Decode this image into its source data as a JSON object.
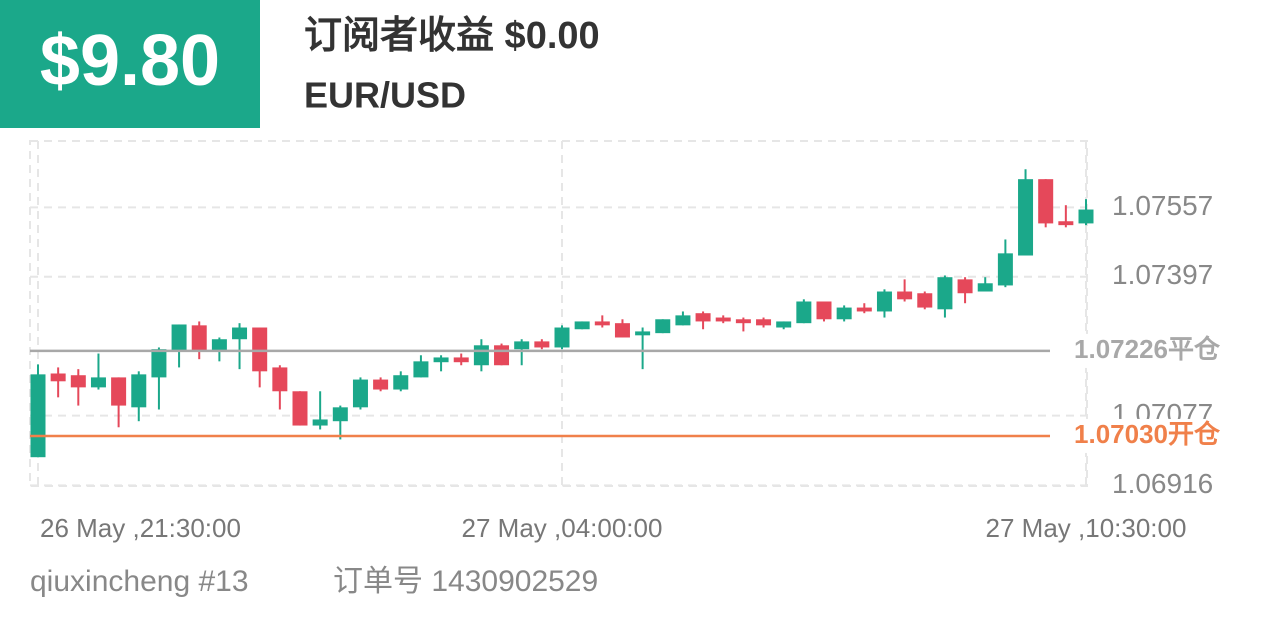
{
  "header": {
    "profit": "$9.80",
    "title": "订阅者收益 $0.00",
    "symbol": "EUR/USD"
  },
  "footer": {
    "user": "qiuxincheng #13",
    "order": "订单号 1430902529"
  },
  "chart_data": {
    "type": "candlestick",
    "categories": [
      "26 May ,21:30:00",
      null,
      null,
      null,
      null,
      null,
      null,
      null,
      null,
      null,
      null,
      null,
      null,
      null,
      null,
      null,
      null,
      null,
      null,
      null,
      null,
      null,
      null,
      null,
      null,
      null,
      "27 May ,04:00:00",
      null,
      null,
      null,
      null,
      null,
      null,
      null,
      null,
      null,
      null,
      null,
      null,
      null,
      null,
      null,
      null,
      null,
      null,
      null,
      null,
      null,
      null,
      null,
      null,
      null,
      "27 May ,10:30:00"
    ],
    "open": [
      1.06981,
      1.07174,
      1.0717,
      1.07142,
      1.07165,
      1.07096,
      1.07165,
      1.07225,
      1.07285,
      1.07225,
      1.07253,
      1.0728,
      1.07188,
      1.07133,
      1.07054,
      1.07064,
      1.07096,
      1.0716,
      1.07137,
      1.07165,
      1.072,
      1.07211,
      1.07193,
      1.07239,
      1.0723,
      1.07248,
      1.07234,
      1.07276,
      1.07294,
      1.0729,
      1.07262,
      1.07267,
      1.07285,
      1.07313,
      1.07303,
      1.07299,
      1.07299,
      1.0728,
      1.0729,
      1.0734,
      1.07299,
      1.07326,
      1.07317,
      1.07363,
      1.07359,
      1.07322,
      1.07391,
      1.07363,
      1.07377,
      1.07446,
      1.07622,
      1.07525,
      1.0752
    ],
    "high": [
      1.07195,
      1.07188,
      1.07184,
      1.0722,
      1.07165,
      1.07179,
      1.07234,
      1.07287,
      1.07294,
      1.07257,
      1.0729,
      1.0728,
      1.07193,
      1.07133,
      1.07133,
      1.071,
      1.07165,
      1.07165,
      1.07179,
      1.07216,
      1.07216,
      1.0722,
      1.07253,
      1.07243,
      1.07253,
      1.07253,
      1.07285,
      1.07294,
      1.07308,
      1.07299,
      1.0728,
      1.07299,
      1.07317,
      1.07317,
      1.07308,
      1.07303,
      1.07303,
      1.07294,
      1.07345,
      1.0734,
      1.07331,
      1.07336,
      1.07368,
      1.07391,
      1.07363,
      1.074,
      1.07396,
      1.07396,
      1.07483,
      1.07645,
      1.07622,
      1.07562,
      1.07576
    ],
    "low": [
      1.06981,
      1.07119,
      1.071,
      1.07137,
      1.0705,
      1.07064,
      1.07091,
      1.07188,
      1.07207,
      1.07202,
      1.07184,
      1.07142,
      1.07091,
      1.07054,
      1.07045,
      1.07022,
      1.07091,
      1.07133,
      1.07133,
      1.07165,
      1.07179,
      1.07193,
      1.07179,
      1.07193,
      1.07193,
      1.0723,
      1.0723,
      1.07276,
      1.0728,
      1.07257,
      1.07184,
      1.07267,
      1.07285,
      1.07276,
      1.0729,
      1.07271,
      1.0728,
      1.07276,
      1.0729,
      1.07294,
      1.07294,
      1.07313,
      1.07303,
      1.0734,
      1.07322,
      1.07303,
      1.07336,
      1.07363,
      1.07373,
      1.07446,
      1.07511,
      1.07511,
      1.07516
    ],
    "close": [
      1.07172,
      1.07156,
      1.07142,
      1.07165,
      1.071,
      1.07172,
      1.0723,
      1.07287,
      1.07225,
      1.07253,
      1.0728,
      1.07179,
      1.07133,
      1.07054,
      1.07068,
      1.07096,
      1.0716,
      1.07137,
      1.0717,
      1.07202,
      1.07211,
      1.072,
      1.07239,
      1.07193,
      1.07248,
      1.07234,
      1.0728,
      1.07294,
      1.07285,
      1.07257,
      1.07271,
      1.07299,
      1.07308,
      1.07294,
      1.07294,
      1.0729,
      1.07285,
      1.07294,
      1.0734,
      1.07299,
      1.07326,
      1.07317,
      1.07363,
      1.07345,
      1.07326,
      1.07396,
      1.07359,
      1.07382,
      1.07451,
      1.07622,
      1.0752,
      1.07516,
      1.07552
    ],
    "up_color": "#1ba88a",
    "down_color": "#e5485a",
    "ylim": [
      1.0691,
      1.0771
    ],
    "yticks": [
      1.06916,
      1.07077,
      1.07397,
      1.07557
    ],
    "grid": true,
    "lines": [
      {
        "value": 1.07226,
        "label": "1.07226平仓",
        "color": "#a8a8a8"
      },
      {
        "value": 1.0703,
        "label": "1.07030开仓",
        "color": "#f0804a"
      }
    ]
  }
}
